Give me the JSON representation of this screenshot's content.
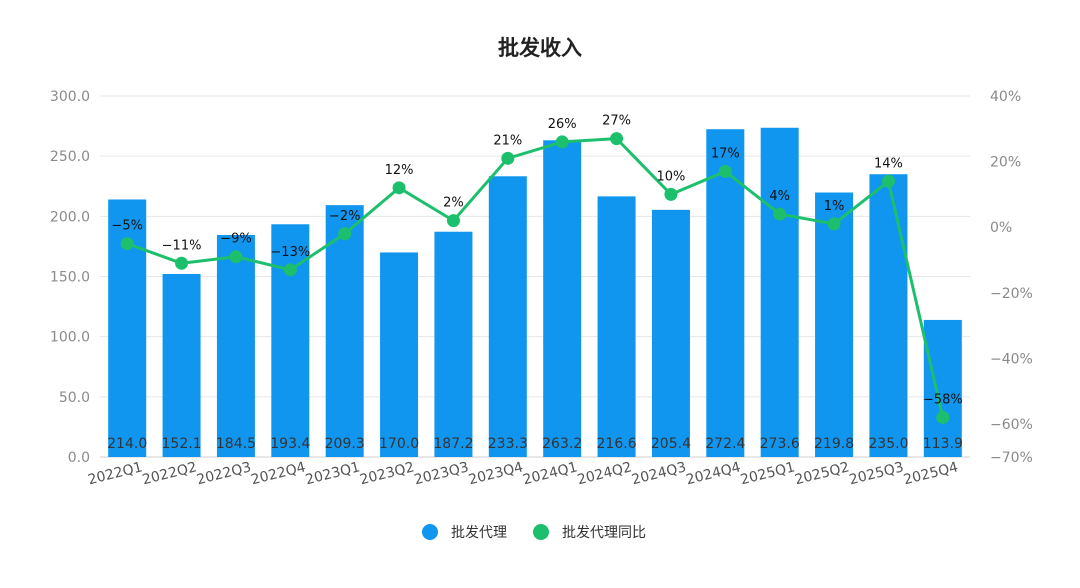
{
  "chart_data": {
    "type": "bar",
    "title": "批发收入",
    "categories": [
      "2022Q1",
      "2022Q2",
      "2022Q3",
      "2022Q4",
      "2023Q1",
      "2023Q2",
      "2023Q3",
      "2023Q4",
      "2024Q1",
      "2024Q2",
      "2024Q3",
      "2024Q4",
      "2025Q1",
      "2025Q2",
      "2025Q3",
      "2025Q4"
    ],
    "series": [
      {
        "name": "批发代理",
        "type": "bar",
        "axis": "left",
        "color": "#1196f0",
        "values": [
          214.0,
          152.1,
          184.5,
          193.4,
          209.3,
          170.0,
          187.2,
          233.3,
          263.2,
          216.6,
          205.4,
          272.4,
          273.6,
          219.8,
          235.0,
          113.9
        ],
        "labels": [
          "214.0",
          "152.1",
          "184.5",
          "193.4",
          "209.3",
          "170.0",
          "187.2",
          "233.3",
          "263.2",
          "216.6",
          "205.4",
          "272.4",
          "273.6",
          "219.8",
          "235.0",
          "113.9"
        ]
      },
      {
        "name": "批发代理同比",
        "type": "line",
        "axis": "right",
        "color": "#1cbf6c",
        "values": [
          -5,
          -11,
          -9,
          -13,
          -2,
          12,
          2,
          21,
          26,
          27,
          10,
          17,
          4,
          1,
          14,
          -58
        ],
        "labels": [
          "−5%",
          "−11%",
          "−9%",
          "−13%",
          "−2%",
          "12%",
          "2%",
          "21%",
          "26%",
          "27%",
          "10%",
          "17%",
          "4%",
          "1%",
          "14%",
          "−58%"
        ]
      }
    ],
    "y_left": {
      "ylim": [
        0,
        300
      ],
      "ticks": [
        0,
        50,
        100,
        150,
        200,
        250,
        300
      ],
      "tick_labels": [
        "0.0",
        "50.0",
        "100.0",
        "150.0",
        "200.0",
        "250.0",
        "300.0"
      ]
    },
    "y_right": {
      "ticks": [
        -70,
        -60,
        -40,
        -20,
        0,
        20,
        40
      ],
      "tick_labels": [
        "−70%",
        "−60%",
        "−40%",
        "−20%",
        "0%",
        "20%",
        "40%"
      ]
    },
    "grid": true,
    "legend_position": "bottom-center"
  }
}
